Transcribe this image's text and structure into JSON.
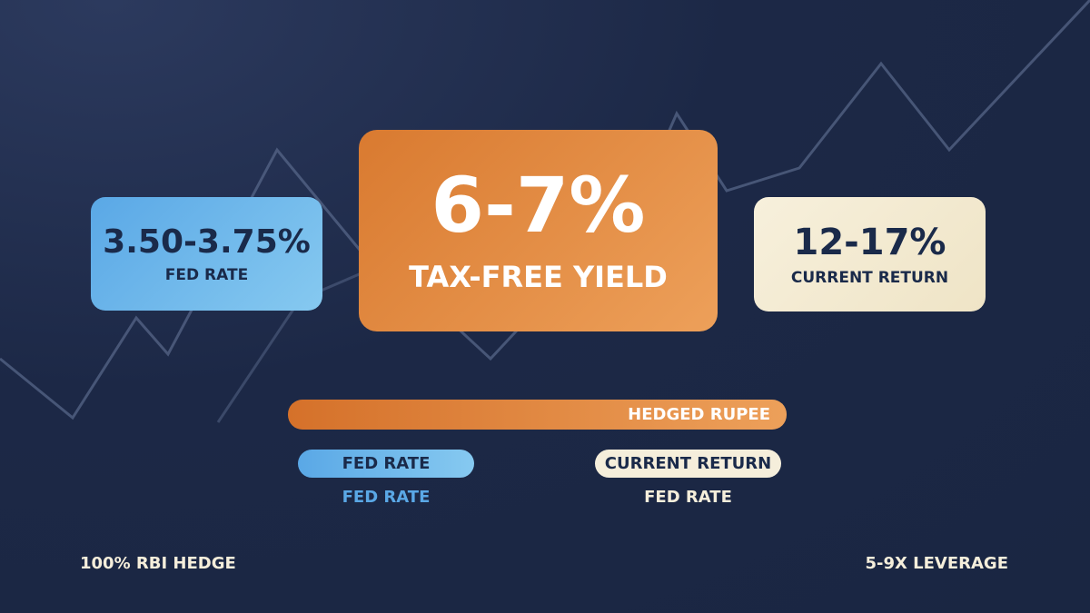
{
  "cards": [
    {
      "value": "3.50-3.75%",
      "label": "FED RATE"
    },
    {
      "value": "6-7%",
      "label": "TAX-FREE YIELD"
    },
    {
      "value": "12-17%",
      "label": "CURRENT RETURN"
    }
  ],
  "bars": {
    "main": "HEDGED RUPEE",
    "pills": [
      {
        "label": "FED RATE",
        "caption": "FED RATE"
      },
      {
        "label": "CURRENT RETURN",
        "caption": "FED RATE"
      }
    ]
  },
  "footer": {
    "left": "100% RBI HEDGE",
    "right": "5-9X LEVERAGE"
  }
}
